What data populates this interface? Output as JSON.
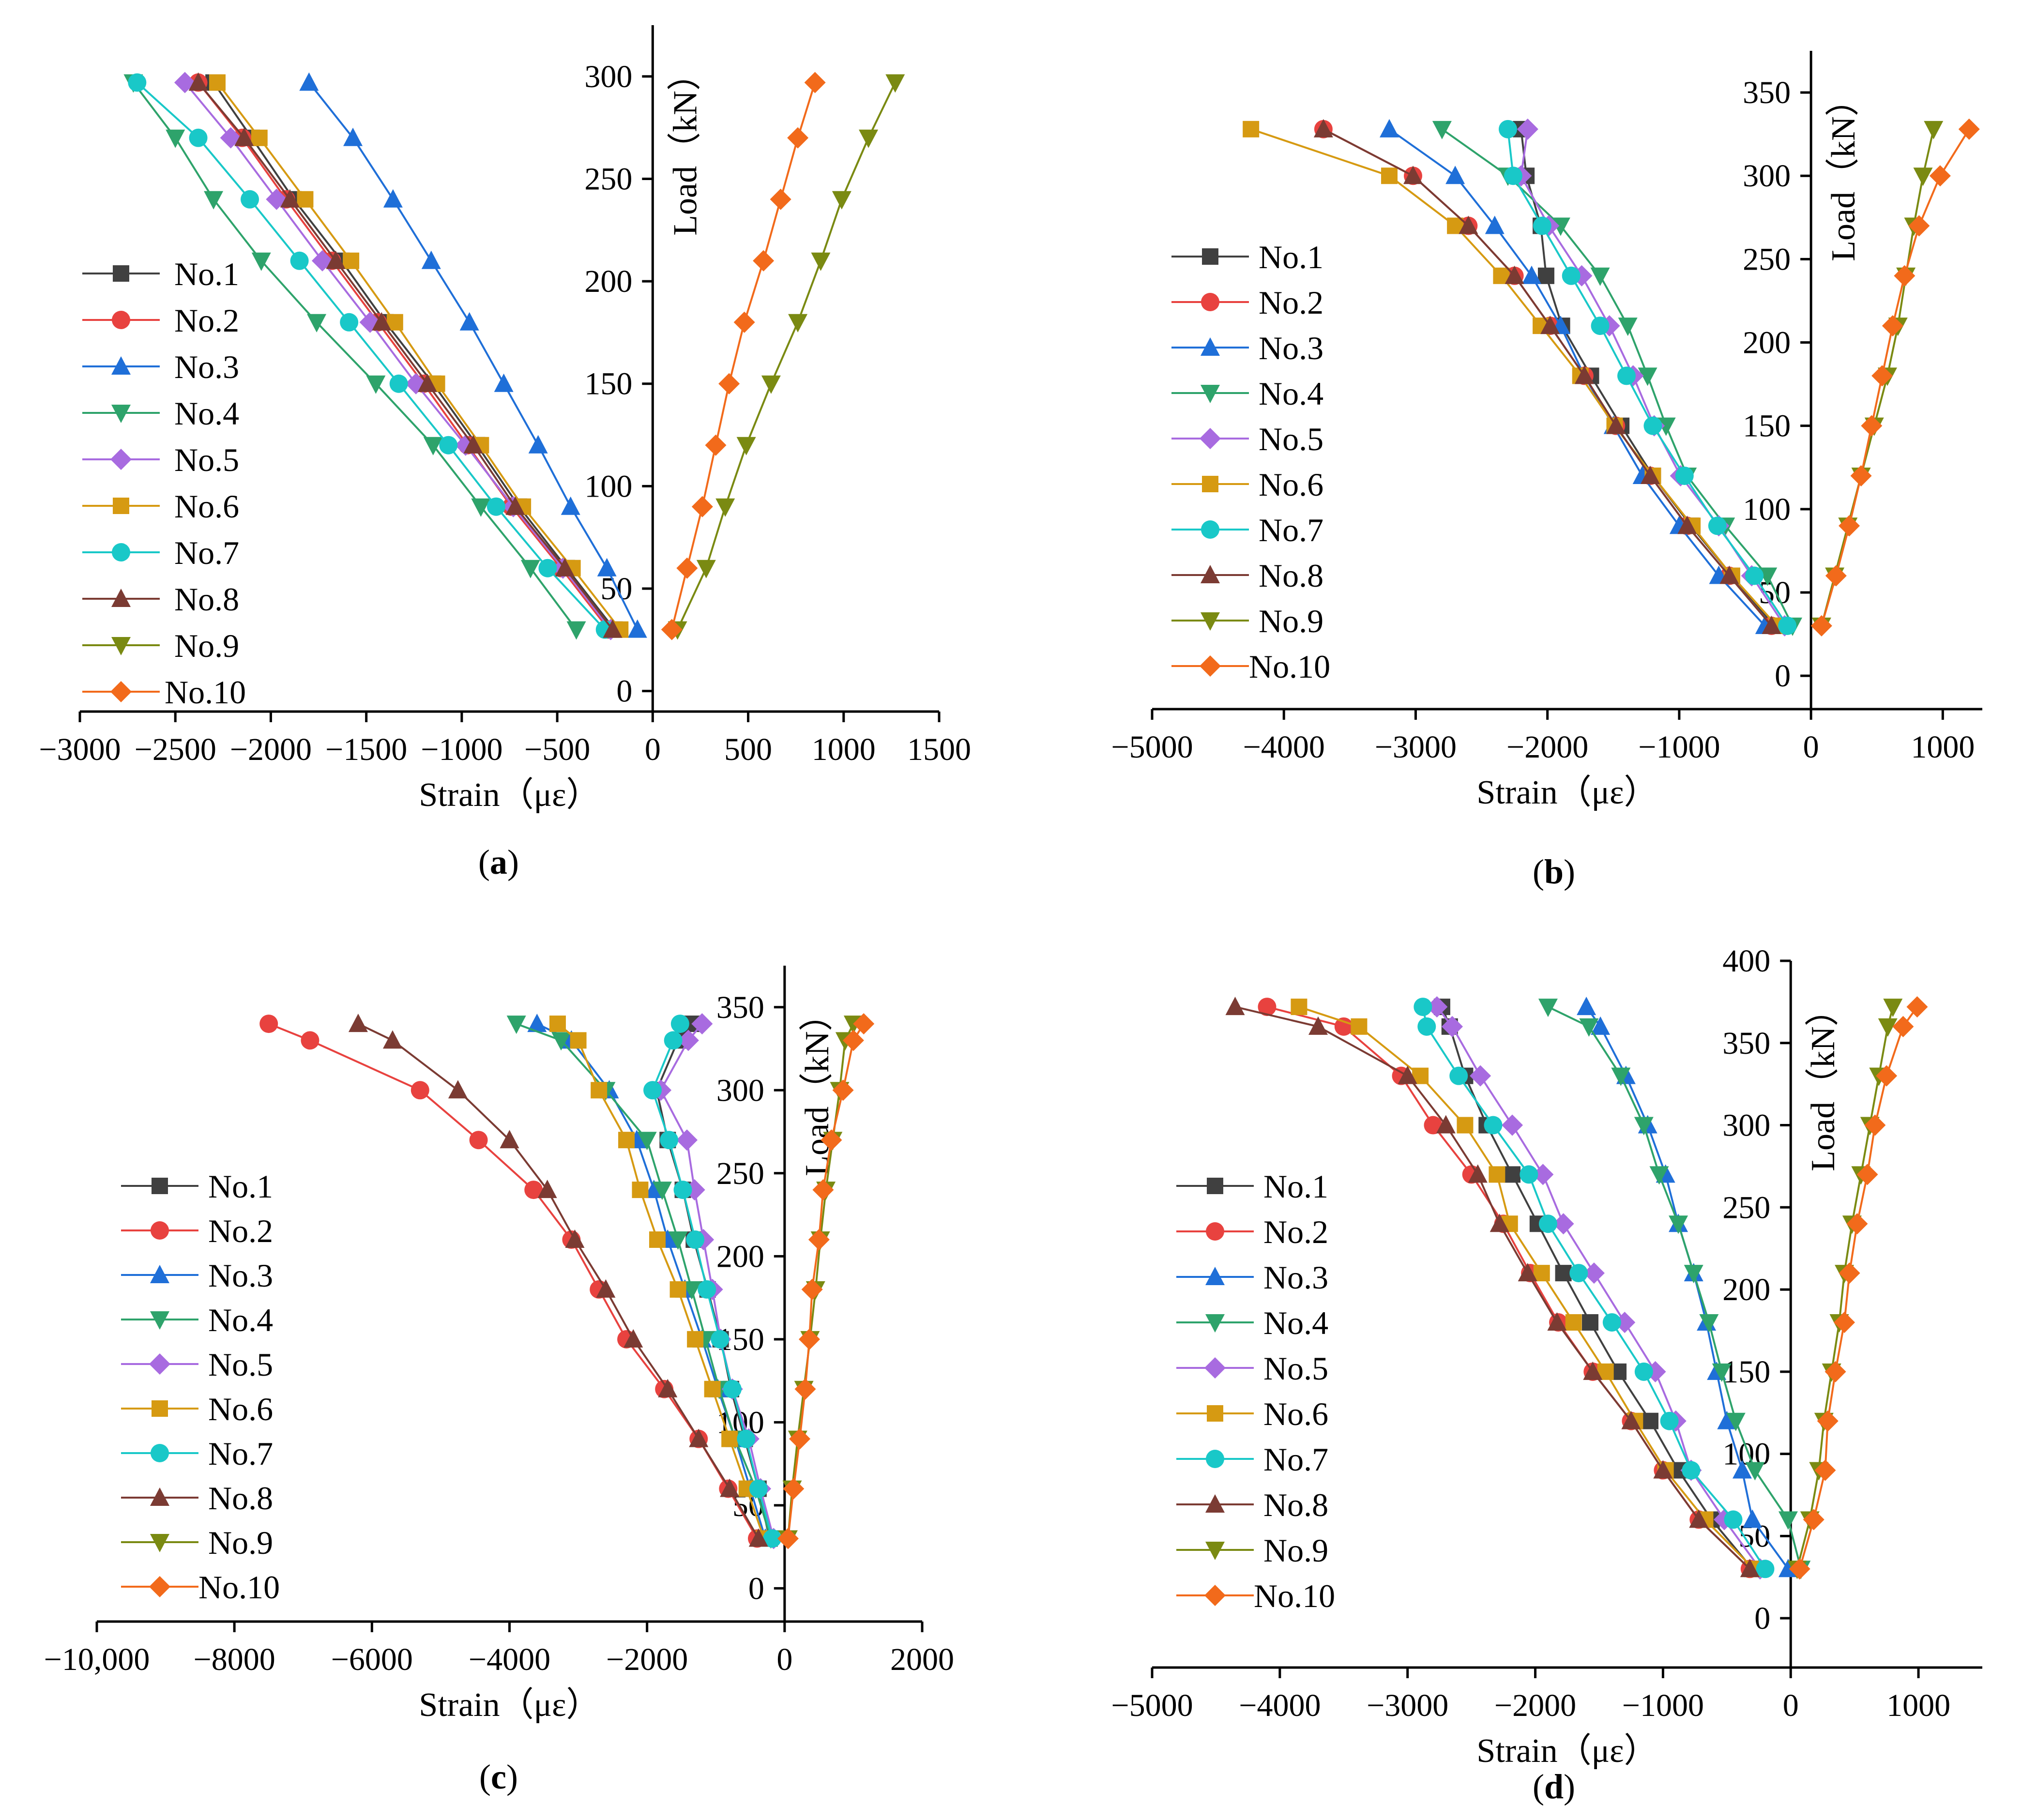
{
  "figure": {
    "colors": {
      "No.1": "#404040",
      "No.2": "#e8423f",
      "No.3": "#1f6fd8",
      "No.4": "#2ea36b",
      "No.5": "#a86be0",
      "No.6": "#d69a12",
      "No.7": "#19c8c8",
      "No.8": "#7b3b33",
      "No.9": "#7a8a12",
      "No.10": "#f26a1b"
    }
  },
  "chart_data": [
    {
      "panel": "(a)",
      "caption_letter": "a",
      "type": "line",
      "xlabel": "Strain（με）",
      "ylabel": "Load（kN）",
      "xlim": [
        -3000,
        1500
      ],
      "ylim": [
        -10,
        325
      ],
      "xticks": [
        -3000,
        -2500,
        -2000,
        -1500,
        -1000,
        -500,
        0,
        500,
        1000,
        1500
      ],
      "xtick_labels": [
        "−3000",
        "−2500",
        "−2000",
        "−1500",
        "−1000",
        "−500",
        "0",
        "500",
        "1000",
        "1500"
      ],
      "yticks": [
        0,
        50,
        100,
        150,
        200,
        250,
        300
      ],
      "ytick_labels": [
        "0",
        "50",
        "100",
        "150",
        "200",
        "250",
        "300"
      ],
      "legend_labels": [
        "No.1",
        "No.2",
        "No.3",
        "No.4",
        "No.5",
        "No.6",
        "No.7",
        "No.8",
        "No.9",
        "No.10"
      ],
      "y": [
        30,
        60,
        90,
        120,
        150,
        180,
        210,
        240,
        270,
        297
      ],
      "series": [
        {
          "name": "No.1",
          "marker": "square",
          "x": [
            -200,
            -450,
            -700,
            -920,
            -1150,
            -1400,
            -1630,
            -1880,
            -2100,
            -2300
          ]
        },
        {
          "name": "No.2",
          "marker": "circle",
          "x": [
            -230,
            -480,
            -740,
            -970,
            -1200,
            -1440,
            -1680,
            -1920,
            -2150,
            -2380
          ]
        },
        {
          "name": "No.3",
          "marker": "triangle-up",
          "x": [
            -80,
            -240,
            -430,
            -600,
            -780,
            -960,
            -1160,
            -1360,
            -1570,
            -1800
          ]
        },
        {
          "name": "No.4",
          "marker": "triangle-down",
          "x": [
            -400,
            -640,
            -900,
            -1150,
            -1450,
            -1760,
            -2050,
            -2300,
            -2500,
            -2720
          ]
        },
        {
          "name": "No.5",
          "marker": "diamond",
          "x": [
            -220,
            -470,
            -730,
            -980,
            -1240,
            -1480,
            -1730,
            -1970,
            -2210,
            -2450
          ]
        },
        {
          "name": "No.6",
          "marker": "square",
          "x": [
            -170,
            -420,
            -680,
            -900,
            -1130,
            -1350,
            -1580,
            -1820,
            -2060,
            -2280
          ]
        },
        {
          "name": "No.7",
          "marker": "circle",
          "x": [
            -250,
            -550,
            -820,
            -1070,
            -1330,
            -1590,
            -1850,
            -2110,
            -2380,
            -2700
          ]
        },
        {
          "name": "No.8",
          "marker": "triangle-up",
          "x": [
            -210,
            -460,
            -720,
            -940,
            -1180,
            -1420,
            -1660,
            -1900,
            -2140,
            -2380
          ]
        },
        {
          "name": "No.9",
          "marker": "triangle-down",
          "x": [
            130,
            280,
            380,
            490,
            620,
            760,
            880,
            990,
            1130,
            1270
          ]
        },
        {
          "name": "No.10",
          "marker": "diamond",
          "x": [
            100,
            180,
            260,
            330,
            400,
            480,
            580,
            670,
            760,
            850
          ]
        }
      ]
    },
    {
      "panel": "(b)",
      "caption_letter": "b",
      "type": "line",
      "xlabel": "Strain（με）",
      "ylabel": "Load（kN）",
      "xlim": [
        -5000,
        1300
      ],
      "ylim": [
        -20,
        375
      ],
      "xticks": [
        -5000,
        -4000,
        -3000,
        -2000,
        -1000,
        0,
        1000
      ],
      "xtick_labels": [
        "−5000",
        "−4000",
        "−3000",
        "−2000",
        "−1000",
        "0",
        "1000"
      ],
      "yticks": [
        0,
        50,
        100,
        150,
        200,
        250,
        300,
        350
      ],
      "ytick_labels": [
        "0",
        "50",
        "100",
        "150",
        "200",
        "250",
        "300",
        "350"
      ],
      "legend_labels": [
        "No.1",
        "No.2",
        "No.3",
        "No.4",
        "No.5",
        "No.6",
        "No.7",
        "No.8",
        "No.9",
        "No.10"
      ],
      "y": [
        30,
        60,
        90,
        120,
        150,
        180,
        210,
        240,
        270,
        300,
        328
      ],
      "series": [
        {
          "name": "No.1",
          "marker": "square",
          "x": [
            -280,
            -600,
            -910,
            -1200,
            -1440,
            -1670,
            -1890,
            -2010,
            -2050,
            -2160,
            -2200
          ]
        },
        {
          "name": "No.2",
          "marker": "circle",
          "x": [
            -300,
            -620,
            -940,
            -1220,
            -1480,
            -1720,
            -1980,
            -2250,
            -2600,
            -3020,
            -3700
          ]
        },
        {
          "name": "No.3",
          "marker": "triangle-up",
          "x": [
            -350,
            -700,
            -1000,
            -1280,
            -1500,
            -1720,
            -1900,
            -2120,
            -2400,
            -2700,
            -3200
          ]
        },
        {
          "name": "No.4",
          "marker": "triangle-down",
          "x": [
            -140,
            -330,
            -650,
            -940,
            -1100,
            -1240,
            -1390,
            -1600,
            -1900,
            -2300,
            -2800
          ]
        },
        {
          "name": "No.5",
          "marker": "diamond",
          "x": [
            -200,
            -450,
            -700,
            -990,
            -1190,
            -1350,
            -1530,
            -1740,
            -1990,
            -2200,
            -2150
          ]
        },
        {
          "name": "No.6",
          "marker": "square",
          "x": [
            -260,
            -600,
            -900,
            -1200,
            -1490,
            -1750,
            -2050,
            -2350,
            -2700,
            -3200,
            -4250
          ]
        },
        {
          "name": "No.7",
          "marker": "circle",
          "x": [
            -180,
            -430,
            -710,
            -960,
            -1200,
            -1400,
            -1600,
            -1820,
            -2040,
            -2260,
            -2300
          ]
        },
        {
          "name": "No.8",
          "marker": "triangle-up",
          "x": [
            -300,
            -620,
            -940,
            -1220,
            -1480,
            -1720,
            -1980,
            -2250,
            -2600,
            -3020,
            -3700
          ]
        },
        {
          "name": "No.9",
          "marker": "triangle-down",
          "x": [
            80,
            180,
            280,
            380,
            480,
            580,
            660,
            720,
            780,
            850,
            930
          ]
        },
        {
          "name": "No.10",
          "marker": "diamond",
          "x": [
            80,
            190,
            290,
            380,
            460,
            540,
            620,
            710,
            820,
            980,
            1200
          ]
        }
      ]
    },
    {
      "panel": "(c)",
      "caption_letter": "c",
      "type": "line",
      "xlabel": "Strain（με）",
      "ylabel": "Load（kN）",
      "xlim": [
        -10000,
        2000
      ],
      "ylim": [
        -20,
        375
      ],
      "xticks": [
        -10000,
        -8000,
        -6000,
        -4000,
        -2000,
        0,
        2000
      ],
      "xtick_labels": [
        "−10,000",
        "−8000",
        "−6000",
        "−4000",
        "−2000",
        "0",
        "2000"
      ],
      "yticks": [
        0,
        50,
        100,
        150,
        200,
        250,
        300,
        350
      ],
      "ytick_labels": [
        "0",
        "50",
        "100",
        "150",
        "200",
        "250",
        "300",
        "350"
      ],
      "legend_labels": [
        "No.1",
        "No.2",
        "No.3",
        "No.4",
        "No.5",
        "No.6",
        "No.7",
        "No.8",
        "No.9",
        "No.10"
      ],
      "y": [
        30,
        60,
        90,
        120,
        150,
        180,
        210,
        240,
        270,
        300,
        330,
        340
      ],
      "series": [
        {
          "name": "No.1",
          "marker": "square",
          "x": [
            -220,
            -380,
            -580,
            -780,
            -930,
            -1120,
            -1320,
            -1480,
            -1700,
            -1860,
            -1550,
            -1350
          ]
        },
        {
          "name": "No.2",
          "marker": "circle",
          "x": [
            -400,
            -820,
            -1250,
            -1750,
            -2300,
            -2700,
            -3100,
            -3650,
            -4450,
            -5300,
            -6900,
            -7500
          ]
        },
        {
          "name": "No.3",
          "marker": "triangle-up",
          "x": [
            -280,
            -500,
            -720,
            -970,
            -1200,
            -1450,
            -1700,
            -1900,
            -2150,
            -2550,
            -3100,
            -3600
          ]
        },
        {
          "name": "No.4",
          "marker": "triangle-down",
          "x": [
            -200,
            -420,
            -720,
            -950,
            -1150,
            -1350,
            -1550,
            -1780,
            -2000,
            -2600,
            -3250,
            -3900
          ]
        },
        {
          "name": "No.5",
          "marker": "diamond",
          "x": [
            -160,
            -350,
            -520,
            -760,
            -930,
            -1050,
            -1180,
            -1310,
            -1420,
            -1800,
            -1400,
            -1200
          ]
        },
        {
          "name": "No.6",
          "marker": "square",
          "x": [
            -300,
            -550,
            -800,
            -1050,
            -1300,
            -1550,
            -1850,
            -2100,
            -2300,
            -2700,
            -3000,
            -3300
          ]
        },
        {
          "name": "No.7",
          "marker": "circle",
          "x": [
            -180,
            -380,
            -560,
            -760,
            -940,
            -1130,
            -1300,
            -1480,
            -1680,
            -1920,
            -1620,
            -1520
          ]
        },
        {
          "name": "No.8",
          "marker": "triangle-up",
          "x": [
            -380,
            -800,
            -1250,
            -1700,
            -2200,
            -2600,
            -3050,
            -3450,
            -4000,
            -4750,
            -5700,
            -6200
          ]
        },
        {
          "name": "No.9",
          "marker": "triangle-down",
          "x": [
            50,
            110,
            190,
            280,
            370,
            450,
            520,
            600,
            700,
            800,
            880,
            1000
          ]
        },
        {
          "name": "No.10",
          "marker": "diamond",
          "x": [
            50,
            130,
            220,
            300,
            360,
            400,
            500,
            560,
            680,
            850,
            1000,
            1150
          ]
        }
      ]
    },
    {
      "panel": "(d)",
      "caption_letter": "d",
      "type": "line",
      "xlabel": "Strain（με）",
      "ylabel": "Load（kN）",
      "xlim": [
        -5000,
        1500
      ],
      "ylim": [
        -30,
        400
      ],
      "xticks": [
        -5000,
        -4000,
        -3000,
        -2000,
        -1000,
        0,
        1000
      ],
      "xtick_labels": [
        "−5000",
        "−4000",
        "−3000",
        "−2000",
        "−1000",
        "0",
        "1000"
      ],
      "yticks": [
        0,
        50,
        100,
        150,
        200,
        250,
        300,
        350,
        400
      ],
      "ytick_labels": [
        "0",
        "50",
        "100",
        "150",
        "200",
        "250",
        "300",
        "350",
        "400"
      ],
      "legend_labels": [
        "No.1",
        "No.2",
        "No.3",
        "No.4",
        "No.5",
        "No.6",
        "No.7",
        "No.8",
        "No.9",
        "No.10"
      ],
      "y": [
        30,
        60,
        90,
        120,
        150,
        180,
        210,
        240,
        270,
        300,
        330,
        360,
        372
      ],
      "series": [
        {
          "name": "No.1",
          "marker": "square",
          "x": [
            -300,
            -620,
            -880,
            -1100,
            -1350,
            -1570,
            -1780,
            -1980,
            -2180,
            -2380,
            -2550,
            -2670,
            -2730
          ]
        },
        {
          "name": "No.2",
          "marker": "circle",
          "x": [
            -320,
            -720,
            -1000,
            -1250,
            -1550,
            -1820,
            -2040,
            -2250,
            -2500,
            -2800,
            -3050,
            -3500,
            -4100
          ]
        },
        {
          "name": "No.3",
          "marker": "triangle-up",
          "x": [
            -20,
            -300,
            -380,
            -500,
            -580,
            -660,
            -760,
            -880,
            -980,
            -1120,
            -1290,
            -1490,
            -1600
          ]
        },
        {
          "name": "No.4",
          "marker": "triangle-down",
          "x": [
            80,
            -20,
            -280,
            -430,
            -540,
            -640,
            -760,
            -880,
            -1030,
            -1150,
            -1330,
            -1580,
            -1900
          ]
        },
        {
          "name": "No.5",
          "marker": "diamond",
          "x": [
            -240,
            -520,
            -780,
            -900,
            -1060,
            -1300,
            -1540,
            -1780,
            -1940,
            -2180,
            -2430,
            -2650,
            -2770
          ]
        },
        {
          "name": "No.6",
          "marker": "square",
          "x": [
            -290,
            -670,
            -980,
            -1220,
            -1450,
            -1700,
            -1950,
            -2200,
            -2300,
            -2550,
            -2900,
            -3380,
            -3850
          ]
        },
        {
          "name": "No.7",
          "marker": "circle",
          "x": [
            -200,
            -450,
            -780,
            -950,
            -1150,
            -1400,
            -1660,
            -1900,
            -2050,
            -2330,
            -2600,
            -2850,
            -2880
          ]
        },
        {
          "name": "No.8",
          "marker": "triangle-up",
          "x": [
            -320,
            -720,
            -1000,
            -1250,
            -1550,
            -1830,
            -2060,
            -2280,
            -2450,
            -2700,
            -3000,
            -3700,
            -4350
          ]
        },
        {
          "name": "No.9",
          "marker": "triangle-down",
          "x": [
            50,
            150,
            220,
            260,
            320,
            380,
            420,
            480,
            550,
            620,
            690,
            760,
            800
          ]
        },
        {
          "name": "No.10",
          "marker": "diamond",
          "x": [
            70,
            180,
            270,
            290,
            350,
            420,
            460,
            520,
            600,
            660,
            750,
            880,
            990
          ]
        }
      ]
    }
  ]
}
